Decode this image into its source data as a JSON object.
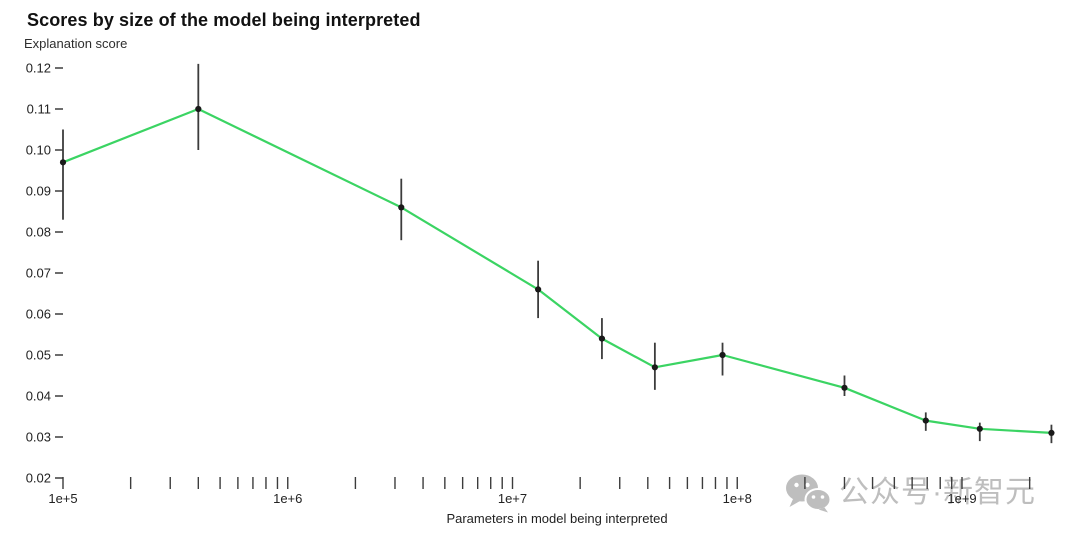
{
  "chart_data": {
    "type": "line",
    "title": "Scores by size of the model being interpreted",
    "subtitle": "Explanation score",
    "ylabel": "Explanation score",
    "xlabel": "Parameters in model being interpreted",
    "x_scale": "log",
    "xlim": [
      100000,
      3200000000
    ],
    "ylim": [
      0.02,
      0.1225
    ],
    "grid": false,
    "legend": "none",
    "line_color": "#3bd463",
    "marker_color": "#1a1a1a",
    "error_bar_color": "#3c3c3c",
    "tick_color": "#3c3c3c",
    "tick_label_color": "#222222",
    "x_tick_labels": [
      {
        "label": "1e+5",
        "value": 100000
      },
      {
        "label": "1e+6",
        "value": 1000000
      },
      {
        "label": "1e+7",
        "value": 10000000
      },
      {
        "label": "1e+8",
        "value": 100000000
      },
      {
        "label": "1e+9",
        "value": 1000000000
      }
    ],
    "y_ticks": [
      0.02,
      0.03,
      0.04,
      0.05,
      0.06,
      0.07,
      0.08,
      0.09,
      0.1,
      0.11,
      0.12
    ],
    "series": [
      {
        "name": "Explanation score",
        "points": [
          {
            "params": 100000,
            "score": 0.097,
            "err_low": 0.083,
            "err_high": 0.105
          },
          {
            "params": 400000,
            "score": 0.11,
            "err_low": 0.1,
            "err_high": 0.121
          },
          {
            "params": 3200000,
            "score": 0.086,
            "err_low": 0.078,
            "err_high": 0.093
          },
          {
            "params": 13000000,
            "score": 0.066,
            "err_low": 0.059,
            "err_high": 0.073
          },
          {
            "params": 25000000,
            "score": 0.054,
            "err_low": 0.049,
            "err_high": 0.059
          },
          {
            "params": 43000000,
            "score": 0.047,
            "err_low": 0.0415,
            "err_high": 0.053
          },
          {
            "params": 86000000,
            "score": 0.05,
            "err_low": 0.045,
            "err_high": 0.053
          },
          {
            "params": 300000000,
            "score": 0.042,
            "err_low": 0.04,
            "err_high": 0.045
          },
          {
            "params": 690000000,
            "score": 0.034,
            "err_low": 0.0315,
            "err_high": 0.036
          },
          {
            "params": 1200000000,
            "score": 0.032,
            "err_low": 0.029,
            "err_high": 0.0335
          },
          {
            "params": 2500000000,
            "score": 0.031,
            "err_low": 0.0285,
            "err_high": 0.033
          }
        ]
      }
    ]
  },
  "watermark": {
    "icon": "wechat-icon",
    "text": "公众号·新智元",
    "color": "#b9b9b9"
  }
}
